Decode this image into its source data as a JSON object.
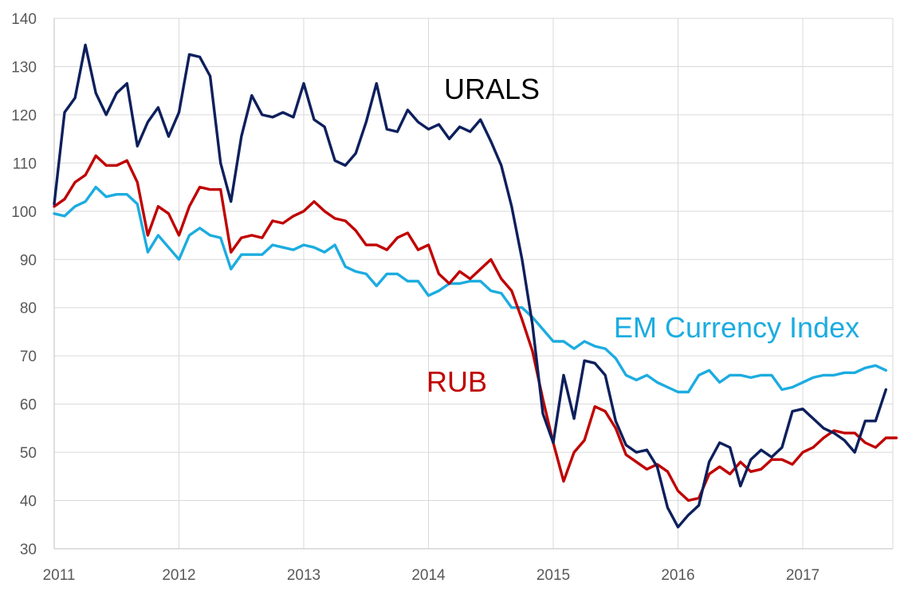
{
  "chart_data": {
    "type": "line",
    "x_axis": {
      "start_year": 2011,
      "end_year": 2017.75,
      "tick_labels": [
        "2011",
        "2012",
        "2013",
        "2014",
        "2015",
        "2016",
        "2017"
      ],
      "vertical_gridlines": true
    },
    "y_axis": {
      "min": 30,
      "max": 140,
      "step": 10,
      "tick_labels": [
        "30",
        "40",
        "50",
        "60",
        "70",
        "80",
        "90",
        "100",
        "110",
        "120",
        "130",
        "140"
      ],
      "horizontal_gridlines": true
    },
    "legend": "none (inline labels)",
    "series": [
      {
        "name": "URALS",
        "color": "#0d1f5c",
        "label_color": "#000000",
        "values": [
          101.5,
          120.5,
          123.5,
          134.5,
          124.5,
          120,
          124.5,
          126.5,
          113.5,
          118.5,
          121.5,
          115.5,
          120.5,
          132.5,
          132,
          128,
          110,
          102,
          115.5,
          124,
          120,
          119.5,
          120.5,
          119.5,
          126.5,
          119,
          117.5,
          110.5,
          109.5,
          112,
          118.5,
          126.5,
          117,
          116.5,
          121,
          118.5,
          117,
          118,
          115,
          117.5,
          116.5,
          119,
          114.5,
          109.5,
          101,
          90,
          76.5,
          58,
          52,
          66,
          57,
          69,
          68.5,
          66,
          56.5,
          51.5,
          50,
          50.5,
          47,
          38.5,
          34.5,
          37,
          39,
          48,
          52,
          51,
          43,
          48.5,
          50.5,
          49,
          51,
          58.5,
          59,
          57,
          55,
          54,
          52.5,
          50,
          56.5,
          56.5,
          63
        ]
      },
      {
        "name": "RUB",
        "color": "#c00000",
        "label_color": "#c00000",
        "values": [
          101,
          102.5,
          106,
          107.5,
          111.5,
          109.5,
          109.5,
          110.5,
          106,
          95,
          101,
          99.5,
          95,
          101,
          105,
          104.5,
          104.5,
          91.5,
          94.5,
          95,
          94.5,
          98,
          97.5,
          99,
          100,
          102,
          100,
          98.5,
          98,
          96,
          93,
          93,
          92,
          94.5,
          95.5,
          92,
          93,
          87,
          85,
          87.5,
          86,
          88,
          90,
          86,
          83.5,
          77.5,
          71,
          61,
          52,
          44,
          50,
          52.5,
          59.5,
          58.5,
          55,
          49.5,
          48,
          46.5,
          47.5,
          46,
          42,
          40,
          40.5,
          45.5,
          47,
          45.5,
          48,
          46,
          46.5,
          48.5,
          48.5,
          47.5,
          50,
          51,
          53,
          54.5,
          54,
          54,
          52,
          51,
          53,
          53
        ]
      },
      {
        "name": "EM Currency Index",
        "color": "#1cace0",
        "label_color": "#1cace0",
        "values": [
          99.5,
          99,
          101,
          102,
          105,
          103,
          103.5,
          103.5,
          101.5,
          91.5,
          95,
          92.5,
          90,
          95,
          96.5,
          95,
          94.5,
          88,
          91,
          91,
          91,
          93,
          92.5,
          92,
          93,
          92.5,
          91.5,
          93,
          88.5,
          87.5,
          87,
          84.5,
          87,
          87,
          85.5,
          85.5,
          82.5,
          83.5,
          85,
          85,
          85.5,
          85.5,
          83.5,
          83,
          80,
          80,
          78,
          75.5,
          73,
          73,
          71.5,
          73,
          72,
          71.5,
          69.5,
          66,
          65,
          66,
          64.5,
          63.5,
          62.5,
          62.5,
          66,
          67,
          64.5,
          66,
          66,
          65.5,
          66,
          66,
          63,
          63.5,
          64.5,
          65.5,
          66,
          66,
          66.5,
          66.5,
          67.5,
          68,
          67
        ]
      }
    ],
    "annotations": [
      {
        "text": "URALS",
        "series": "URALS"
      },
      {
        "text": "EM Currency Index",
        "series": "EM Currency Index"
      },
      {
        "text": "RUB",
        "series": "RUB"
      }
    ]
  }
}
